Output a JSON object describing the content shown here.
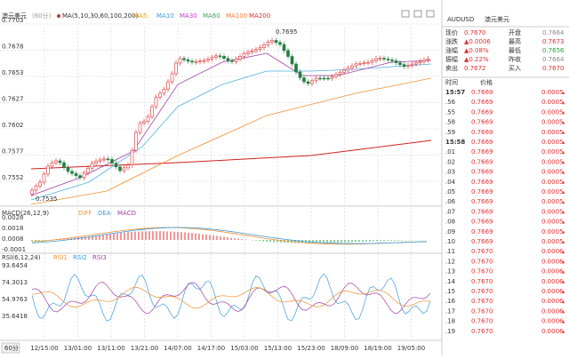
{
  "chart_header": {
    "title": "澳元美元",
    "period": "(60分)",
    "ma": "MA(5,10,30,60,100,200)",
    "ma_labels": [
      "MA5:",
      "MA10",
      "MA30",
      "MA60",
      "MA100",
      "MA200"
    ]
  },
  "price_axis": [
    "0.7703",
    "0.7678",
    "0.7653",
    "0.7627",
    "0.7602",
    "0.7577",
    "0.7552"
  ],
  "annotations": {
    "high": "0.7695",
    "low": "0.7535"
  },
  "macd": {
    "header": "MACD(26,12,9)",
    "labels": [
      "DIFF",
      "DEA",
      "MACD"
    ],
    "axis": [
      "0.0028",
      "0.0018",
      "0.0008",
      "-0.0001"
    ]
  },
  "rsi": {
    "header": "RSI(6,12,24)",
    "labels": [
      "RSI1",
      "RSI2",
      "RSI3"
    ],
    "axis": [
      "93.6454",
      "74.3013",
      "54.9763",
      "35.6418"
    ]
  },
  "period_button": "60分",
  "time_axis": [
    "12/15:00",
    "13/01:00",
    "13/11:00",
    "13/21:00",
    "14/07:00",
    "14/17:00",
    "15/03:00",
    "15/13:00",
    "15/23:00",
    "18/09:00",
    "18/19:00",
    "19/05:00"
  ],
  "quote": {
    "symbol": "AUDUSD",
    "name": "澳元美元",
    "rows": [
      [
        "现价",
        "0.7670",
        "开盘",
        "0.7664"
      ],
      [
        "涨跌",
        "▲0.0006",
        "最高",
        "0.7673"
      ],
      [
        "涨幅",
        "▲0.08%",
        "最低",
        "0.7656"
      ],
      [
        "振幅",
        "▲0.22%",
        "昨收",
        "0.7664"
      ],
      [
        "卖出",
        "0.7672",
        "买入",
        "0.7670"
      ]
    ]
  },
  "ticks": {
    "headers": [
      "时间",
      "价格"
    ],
    "rows": [
      [
        "15:57",
        "0.7669",
        "0.0005"
      ],
      [
        ".56",
        "0.7669",
        "0.0005"
      ],
      [
        ".55",
        "0.7669",
        "0.0005"
      ],
      [
        ".58",
        "0.7669",
        "0.0005"
      ],
      [
        ".59",
        "0.7669",
        "0.0005"
      ],
      [
        "15:58",
        "0.7669",
        "0.0005"
      ],
      [
        ".01",
        "0.7669",
        "0.0005"
      ],
      [
        ".02",
        "0.7669",
        "0.0005"
      ],
      [
        ".03",
        "0.7669",
        "0.0005"
      ],
      [
        ".04",
        "0.7669",
        "0.0005"
      ],
      [
        ".05",
        "0.7669",
        "0.0005"
      ],
      [
        ".06",
        "0.7669",
        "0.0005"
      ],
      [
        ".07",
        "0.7669",
        "0.0005"
      ],
      [
        ".08",
        "0.7669",
        "0.0005"
      ],
      [
        ".09",
        "0.7669",
        "0.0005"
      ],
      [
        ".10",
        "0.7669",
        "0.0005"
      ],
      [
        ".11",
        "0.7670",
        "0.0006"
      ],
      [
        ".12",
        "0.7670",
        "0.0006"
      ],
      [
        ".13",
        "0.7670",
        "0.0006"
      ],
      [
        ".14",
        "0.7670",
        "0.0006"
      ],
      [
        ".15",
        "0.7670",
        "0.0006"
      ],
      [
        ".16",
        "0.7670",
        "0.0006"
      ],
      [
        ".17",
        "0.7670",
        "0.0006"
      ],
      [
        ".18",
        "0.7670",
        "0.0006"
      ],
      [
        ".19",
        "0.7670",
        "0.0006"
      ]
    ]
  }
}
